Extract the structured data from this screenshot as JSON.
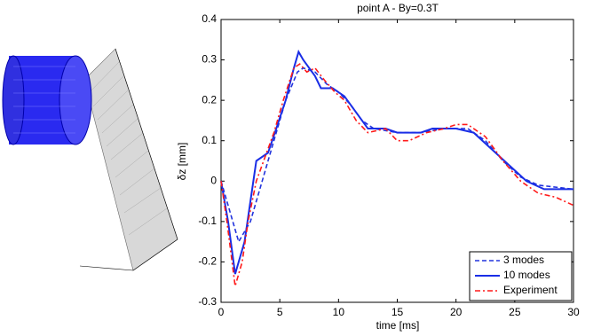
{
  "chart_data": {
    "type": "line",
    "title": "point A - By=0.3T",
    "xlabel": "time [ms]",
    "ylabel": "δz [mm]",
    "xlim": [
      0,
      30
    ],
    "xticks": [
      0,
      5,
      10,
      15,
      20,
      25,
      30
    ],
    "ylim": [
      -0.3,
      0.4
    ],
    "yticks": [
      -0.3,
      -0.2,
      -0.1,
      0,
      0.1,
      0.2,
      0.3,
      0.4
    ],
    "legend": "lower right",
    "series": [
      {
        "name": "3 modes",
        "color": "#2233dd",
        "dash": "dashed",
        "x": [
          0,
          1.5,
          2.5,
          3.5,
          4.5,
          5.5,
          6.5,
          7,
          8,
          9,
          10,
          11,
          12,
          13,
          15,
          17,
          19,
          21,
          22.5,
          24,
          25.5,
          27,
          30
        ],
        "values": [
          0,
          -0.15,
          -0.1,
          0,
          0.1,
          0.2,
          0.27,
          0.28,
          0.27,
          0.24,
          0.22,
          0.19,
          0.15,
          0.13,
          0.12,
          0.12,
          0.13,
          0.13,
          0.1,
          0.05,
          0.01,
          -0.01,
          -0.02
        ]
      },
      {
        "name": "10 modes",
        "color": "#1a2ee6",
        "dash": "solid",
        "x": [
          0,
          0.6,
          1.2,
          2,
          2.5,
          3,
          4,
          4.7,
          5.5,
          6.2,
          6.6,
          7,
          8,
          8.5,
          9.5,
          10.5,
          11.5,
          12.5,
          14,
          15,
          17,
          18,
          20,
          21.5,
          23,
          24.5,
          26,
          27.5,
          30
        ],
        "values": [
          0,
          -0.1,
          -0.23,
          -0.15,
          -0.05,
          0.05,
          0.07,
          0.13,
          0.2,
          0.28,
          0.32,
          0.3,
          0.26,
          0.23,
          0.23,
          0.21,
          0.17,
          0.13,
          0.13,
          0.12,
          0.12,
          0.13,
          0.13,
          0.12,
          0.08,
          0.04,
          0,
          -0.02,
          -0.02
        ]
      },
      {
        "name": "Experiment",
        "color": "#ff1a1a",
        "dash": "dashdot",
        "x": [
          0,
          0.5,
          1.2,
          1.8,
          2.3,
          3,
          4,
          4.5,
          5.3,
          6.2,
          6.7,
          7.3,
          8,
          8.8,
          9.7,
          10.5,
          11.5,
          12.5,
          14,
          15,
          16,
          17.5,
          19,
          20,
          21,
          22.5,
          24,
          25.5,
          27,
          28.5,
          30
        ],
        "values": [
          0,
          -0.1,
          -0.26,
          -0.2,
          -0.1,
          0,
          0.08,
          0.12,
          0.2,
          0.28,
          0.29,
          0.27,
          0.28,
          0.25,
          0.22,
          0.2,
          0.15,
          0.12,
          0.13,
          0.1,
          0.1,
          0.12,
          0.13,
          0.14,
          0.14,
          0.11,
          0.05,
          0,
          -0.03,
          -0.04,
          -0.06
        ]
      }
    ]
  }
}
